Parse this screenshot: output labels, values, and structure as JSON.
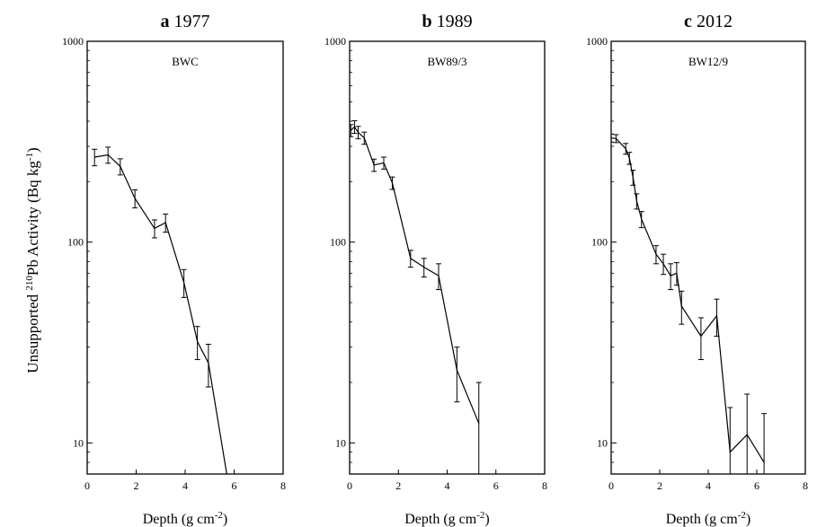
{
  "y_axis": {
    "label_prefix": "Unsupported ",
    "label_sup1": "210",
    "label_mid": "Pb Activity  (Bq kg",
    "label_sup2": "-1",
    "label_suffix": ")"
  },
  "chart_data": [
    {
      "type": "line",
      "panel_letter": "a",
      "title": "1977",
      "site": "BWC",
      "xlabel_main": "Depth  (g cm",
      "xlabel_sup": "-2",
      "xlabel_end": ")",
      "xlim": [
        0,
        8
      ],
      "xticks": [
        0,
        2,
        4,
        6,
        8
      ],
      "ylim": [
        7,
        1000
      ],
      "yscale": "log",
      "yticks": [
        10,
        100,
        1000
      ],
      "points": [
        {
          "x": 0.3,
          "y": 265,
          "err": 25
        },
        {
          "x": 0.85,
          "y": 272,
          "err": 25
        },
        {
          "x": 1.35,
          "y": 238,
          "err": 22
        },
        {
          "x": 1.95,
          "y": 165,
          "err": 17
        },
        {
          "x": 2.75,
          "y": 117,
          "err": 12
        },
        {
          "x": 3.2,
          "y": 125,
          "err": 13
        },
        {
          "x": 3.95,
          "y": 63,
          "err": 10
        },
        {
          "x": 4.5,
          "y": 32,
          "err": 6
        },
        {
          "x": 4.95,
          "y": 25,
          "err": 6
        },
        {
          "x": 5.7,
          "y": 7,
          "err": 0
        }
      ]
    },
    {
      "type": "line",
      "panel_letter": "b",
      "title": "1989",
      "site": "BW89/3",
      "xlabel_main": "Depth  (g cm",
      "xlabel_sup": "-2",
      "xlabel_end": ")",
      "xlim": [
        0,
        8
      ],
      "xticks": [
        0,
        2,
        4,
        6,
        8
      ],
      "ylim": [
        7,
        1000
      ],
      "yscale": "log",
      "yticks": [
        10,
        100,
        1000
      ],
      "points": [
        {
          "x": 0.05,
          "y": 360,
          "err": 25
        },
        {
          "x": 0.2,
          "y": 375,
          "err": 27
        },
        {
          "x": 0.35,
          "y": 352,
          "err": 25
        },
        {
          "x": 0.6,
          "y": 330,
          "err": 23
        },
        {
          "x": 1.0,
          "y": 242,
          "err": 17
        },
        {
          "x": 1.4,
          "y": 248,
          "err": 17
        },
        {
          "x": 1.75,
          "y": 197,
          "err": 14
        },
        {
          "x": 2.5,
          "y": 83,
          "err": 8
        },
        {
          "x": 3.05,
          "y": 75,
          "err": 8
        },
        {
          "x": 3.65,
          "y": 68,
          "err": 10
        },
        {
          "x": 4.4,
          "y": 23,
          "err": 7
        },
        {
          "x": 5.3,
          "y": 12.5,
          "err": 7.5
        }
      ]
    },
    {
      "type": "line",
      "panel_letter": "c",
      "title": "2012",
      "site": "BW12/9",
      "xlabel_main": "Depth  (g cm",
      "xlabel_sup": "-2",
      "xlabel_end": ")",
      "xlim": [
        0,
        8
      ],
      "xticks": [
        0,
        2,
        4,
        6,
        8
      ],
      "ylim": [
        7,
        1000
      ],
      "yscale": "log",
      "yticks": [
        10,
        100,
        1000
      ],
      "points": [
        {
          "x": 0.0,
          "y": 330,
          "err": 15
        },
        {
          "x": 0.2,
          "y": 328,
          "err": 15
        },
        {
          "x": 0.6,
          "y": 292,
          "err": 18
        },
        {
          "x": 0.75,
          "y": 262,
          "err": 18
        },
        {
          "x": 0.9,
          "y": 210,
          "err": 18
        },
        {
          "x": 1.05,
          "y": 160,
          "err": 14
        },
        {
          "x": 1.25,
          "y": 130,
          "err": 12
        },
        {
          "x": 1.85,
          "y": 87,
          "err": 9
        },
        {
          "x": 2.15,
          "y": 78,
          "err": 9
        },
        {
          "x": 2.45,
          "y": 68,
          "err": 10
        },
        {
          "x": 2.7,
          "y": 70,
          "err": 9
        },
        {
          "x": 2.9,
          "y": 48,
          "err": 9
        },
        {
          "x": 3.7,
          "y": 34,
          "err": 8
        },
        {
          "x": 4.35,
          "y": 43,
          "err": 9
        },
        {
          "x": 4.9,
          "y": 9,
          "err": 6
        },
        {
          "x": 5.6,
          "y": 11,
          "err": 6.5
        },
        {
          "x": 6.3,
          "y": 8,
          "err": 6
        }
      ]
    }
  ]
}
